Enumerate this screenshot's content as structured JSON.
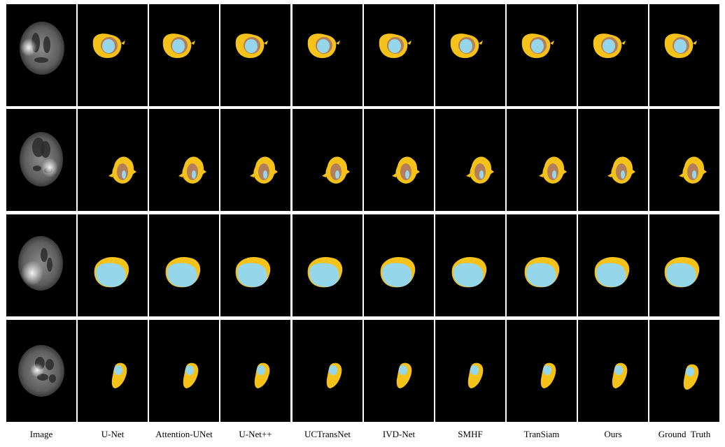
{
  "colors": {
    "background": "#000000",
    "edema": "#f5c219",
    "enhancing_core": "#b27e5c",
    "necrotic_core": "#96d6ea",
    "separator": "#ffffff"
  },
  "columns": [
    {
      "label": "Image"
    },
    {
      "label": "U-Net"
    },
    {
      "label": "Attention-UNet"
    },
    {
      "label": "U-Net++"
    },
    {
      "label": "UCTransNet"
    },
    {
      "label": "IVD-Net"
    },
    {
      "label": "SMHF"
    },
    {
      "label": "TranSiam"
    },
    {
      "label": "Ours"
    },
    {
      "label": "Ground  Truth"
    }
  ]
}
